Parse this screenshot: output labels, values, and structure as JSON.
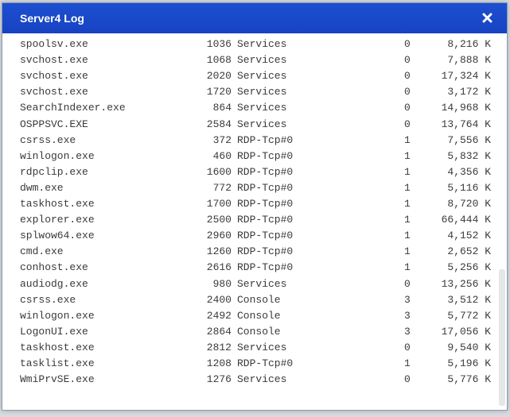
{
  "window": {
    "title": "Server4 Log",
    "rows": [
      [
        "spoolsv.exe",
        "1036",
        "Services",
        "0",
        "8,216 K"
      ],
      [
        "svchost.exe",
        "1068",
        "Services",
        "0",
        "7,888 K"
      ],
      [
        "svchost.exe",
        "2020",
        "Services",
        "0",
        "17,324 K"
      ],
      [
        "svchost.exe",
        "1720",
        "Services",
        "0",
        "3,172 K"
      ],
      [
        "SearchIndexer.exe",
        "864",
        "Services",
        "0",
        "14,968 K"
      ],
      [
        "OSPPSVC.EXE",
        "2584",
        "Services",
        "0",
        "13,764 K"
      ],
      [
        "csrss.exe",
        "372",
        "RDP-Tcp#0",
        "1",
        "7,556 K"
      ],
      [
        "winlogon.exe",
        "460",
        "RDP-Tcp#0",
        "1",
        "5,832 K"
      ],
      [
        "rdpclip.exe",
        "1600",
        "RDP-Tcp#0",
        "1",
        "4,356 K"
      ],
      [
        "dwm.exe",
        "772",
        "RDP-Tcp#0",
        "1",
        "5,116 K"
      ],
      [
        "taskhost.exe",
        "1700",
        "RDP-Tcp#0",
        "1",
        "8,720 K"
      ],
      [
        "explorer.exe",
        "2500",
        "RDP-Tcp#0",
        "1",
        "66,444 K"
      ],
      [
        "splwow64.exe",
        "2960",
        "RDP-Tcp#0",
        "1",
        "4,152 K"
      ],
      [
        "cmd.exe",
        "1260",
        "RDP-Tcp#0",
        "1",
        "2,652 K"
      ],
      [
        "conhost.exe",
        "2616",
        "RDP-Tcp#0",
        "1",
        "5,256 K"
      ],
      [
        "audiodg.exe",
        "980",
        "Services",
        "0",
        "13,256 K"
      ],
      [
        "csrss.exe",
        "2400",
        "Console",
        "3",
        "3,512 K"
      ],
      [
        "winlogon.exe",
        "2492",
        "Console",
        "3",
        "5,772 K"
      ],
      [
        "LogonUI.exe",
        "2864",
        "Console",
        "3",
        "17,056 K"
      ],
      [
        "taskhost.exe",
        "2812",
        "Services",
        "0",
        "9,540 K"
      ],
      [
        "tasklist.exe",
        "1208",
        "RDP-Tcp#0",
        "1",
        "5,196 K"
      ],
      [
        "WmiPrvSE.exe",
        "1276",
        "Services",
        "0",
        "5,776 K"
      ]
    ]
  }
}
